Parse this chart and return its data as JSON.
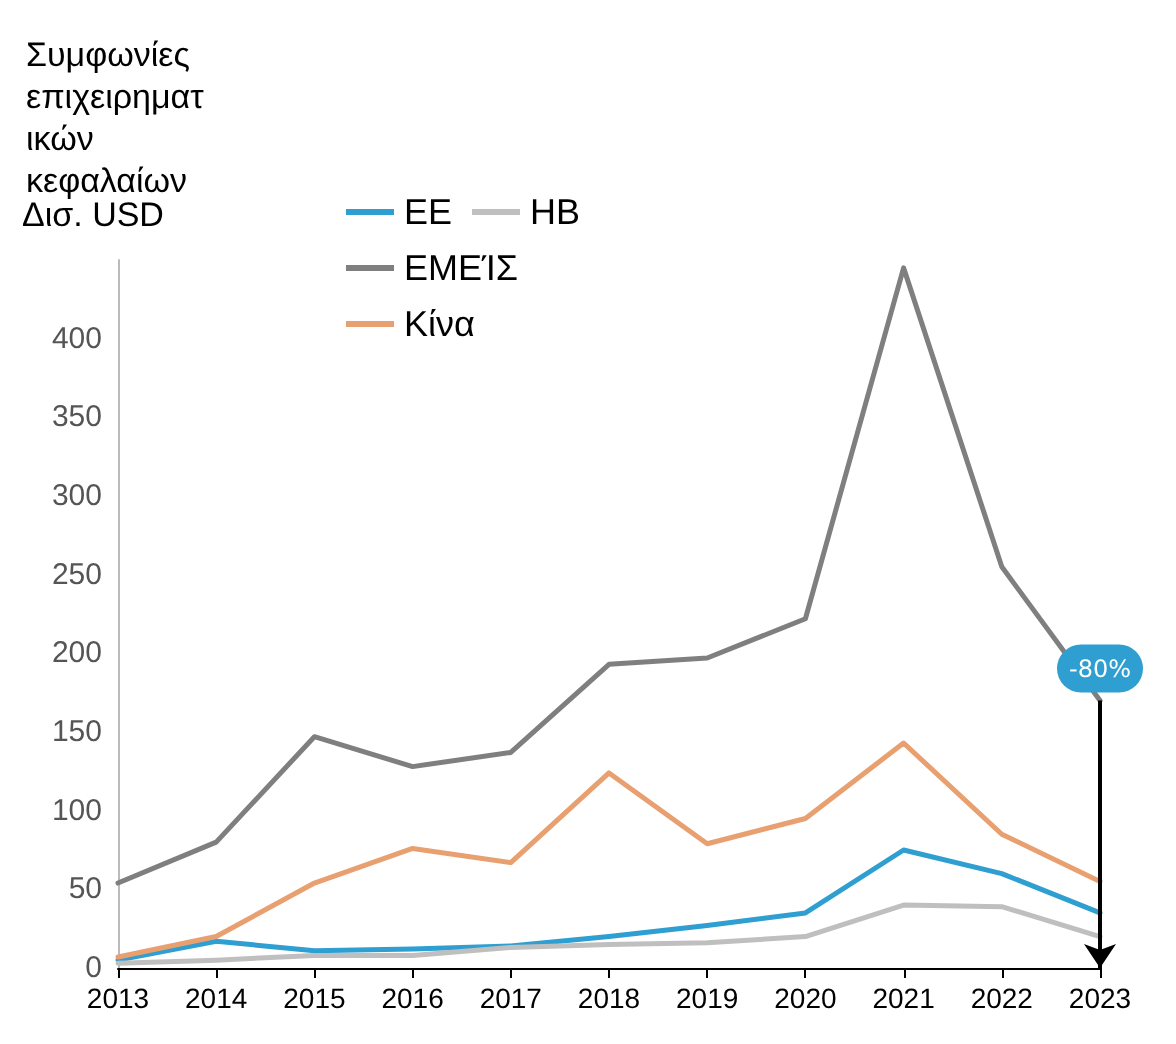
{
  "chart_data": {
    "type": "line",
    "title": "Συμφωνίες επιχειρηματικών κεφαλαίων",
    "ylabel": "Δισ. USD",
    "categories": [
      "2013",
      "2014",
      "2015",
      "2016",
      "2017",
      "2018",
      "2019",
      "2020",
      "2021",
      "2022",
      "2023"
    ],
    "series": [
      {
        "name": "ΕΕ",
        "color": "#2e9fd0",
        "values": [
          5,
          17,
          11,
          12,
          14,
          20,
          27,
          35,
          75,
          60,
          35
        ]
      },
      {
        "name": "ΗΒ",
        "color": "#bfbfbf",
        "values": [
          3,
          5,
          8,
          8,
          13,
          15,
          16,
          20,
          40,
          39,
          20
        ]
      },
      {
        "name": "ΕΜΕΊΣ",
        "color": "#7f7f7f",
        "values": [
          54,
          80,
          147,
          128,
          137,
          193,
          197,
          222,
          445,
          255,
          170
        ]
      },
      {
        "name": "Κίνα",
        "color": "#e8a070",
        "values": [
          7,
          20,
          54,
          76,
          67,
          124,
          79,
          95,
          143,
          85,
          55
        ]
      }
    ],
    "annotations": [
      {
        "text": "-80%",
        "x": "2023",
        "y": 170
      }
    ],
    "ylim": [
      0,
      450
    ],
    "yticks": [
      0,
      50,
      100,
      150,
      200,
      250,
      300,
      350,
      400
    ],
    "grid": false,
    "legend": "top left",
    "marker": "none",
    "line_style": "solid"
  }
}
